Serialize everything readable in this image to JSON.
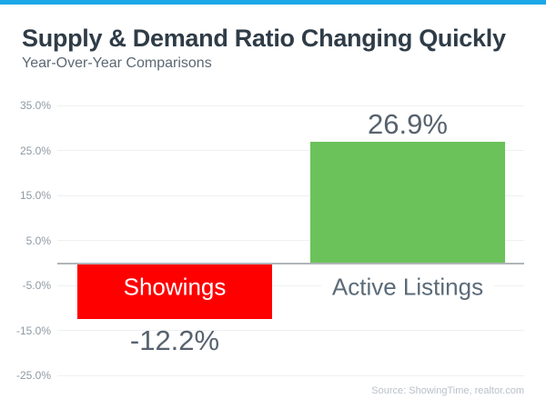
{
  "page": {
    "title": "Supply & Demand Ratio Changing Quickly",
    "subtitle": "Year-Over-Year Comparisons",
    "source": "Source: ShowingTime, realtor.com"
  },
  "colors": {
    "accent_bar": "#1ba7e8",
    "negative_bar": "#fe0000",
    "positive_bar": "#6bc25a",
    "title_text": "#2f3c47",
    "subtitle_text": "#5c6873",
    "value_label_text": "#57626e",
    "axis_tick_text": "#8e99a3",
    "axis_line": "#b0b5b9",
    "source_text": "#b9c1c9"
  },
  "chart_data": {
    "type": "bar",
    "title": "Supply & Demand Ratio Changing Quickly",
    "subtitle": "Year-Over-Year Comparisons",
    "categories": [
      "Showings",
      "Active Listings"
    ],
    "values": [
      -12.2,
      26.9
    ],
    "value_labels": [
      "-12.2%",
      "26.9%"
    ],
    "bar_colors": [
      "#fe0000",
      "#6bc25a"
    ],
    "category_label_colors": [
      "#ffffff",
      "#5b6b78"
    ],
    "category_label_backgrounds": [
      "transparent",
      "#ffffff"
    ],
    "yticks": [
      {
        "label": "35.0%",
        "value": 35
      },
      {
        "label": "25.0%",
        "value": 25
      },
      {
        "label": "15.0%",
        "value": 15
      },
      {
        "label": "5.0%",
        "value": 5
      },
      {
        "label": "-5.0%",
        "value": -5
      },
      {
        "label": "-15.0%",
        "value": -15
      },
      {
        "label": "-25.0%",
        "value": -25
      }
    ],
    "ylim": [
      -30,
      38
    ],
    "grid": true,
    "legend_position": "none",
    "source": "Source: ShowingTime, realtor.com"
  }
}
